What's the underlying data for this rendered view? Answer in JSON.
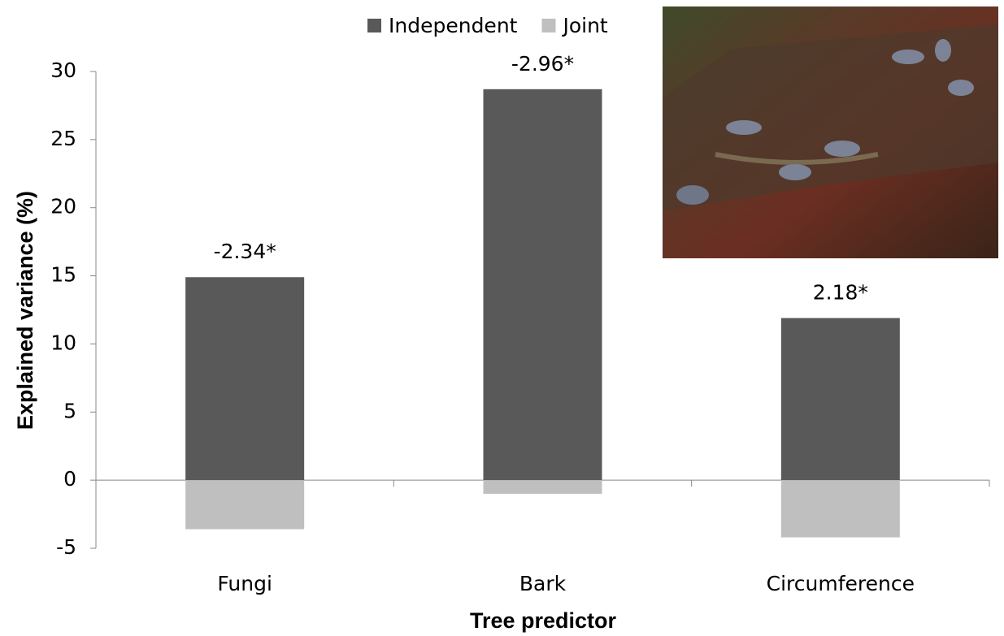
{
  "chart_data": {
    "type": "bar",
    "x_label": "Tree predictor",
    "y_label": "Explained variance (%)",
    "categories": [
      "Fungi",
      "Bark",
      "Circumference"
    ],
    "series": [
      {
        "name": "Independent",
        "color": "#595959",
        "values": [
          14.9,
          28.7,
          11.9
        ]
      },
      {
        "name": "Joint",
        "color": "#bfbfbf",
        "values": [
          -3.6,
          -1.0,
          -4.2
        ]
      }
    ],
    "annotations": [
      "-2.34*",
      "-2.96*",
      "2.18*"
    ],
    "ylim": [
      -5,
      30
    ],
    "yticks": [
      -5,
      0,
      5,
      10,
      15,
      20,
      25,
      30
    ],
    "legend": "top"
  }
}
